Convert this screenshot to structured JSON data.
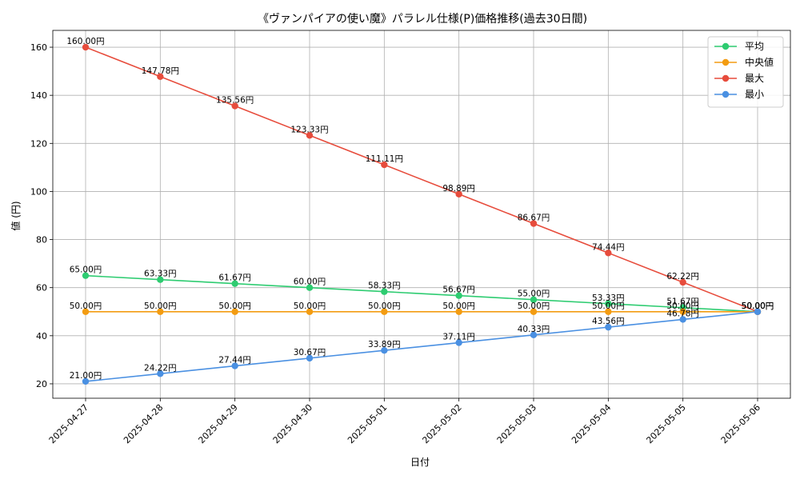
{
  "chart_data": {
    "type": "line",
    "title": "《ヴァンパイアの使い魔》パラレル仕様(P)価格推移(過去30日間)",
    "xlabel": "日付",
    "ylabel": "値 (円)",
    "x": [
      "2025-04-27",
      "2025-04-28",
      "2025-04-29",
      "2025-04-30",
      "2025-05-01",
      "2025-05-02",
      "2025-05-03",
      "2025-05-04",
      "2025-05-05",
      "2025-05-06"
    ],
    "ylim": [
      14,
      167
    ],
    "yticks": [
      20,
      40,
      60,
      80,
      100,
      120,
      140,
      160
    ],
    "grid": true,
    "legend_position": "top-right",
    "value_suffix": "円",
    "series": [
      {
        "name": "平均",
        "color": "#2ecc71",
        "values": [
          65.0,
          63.33,
          61.67,
          60.0,
          58.33,
          56.67,
          55.0,
          53.33,
          51.67,
          50.0
        ]
      },
      {
        "name": "中央値",
        "color": "#f39c12",
        "values": [
          50.0,
          50.0,
          50.0,
          50.0,
          50.0,
          50.0,
          50.0,
          50.0,
          50.0,
          50.0
        ]
      },
      {
        "name": "最大",
        "color": "#e74c3c",
        "values": [
          160.0,
          147.78,
          135.56,
          123.33,
          111.11,
          98.89,
          86.67,
          74.44,
          62.22,
          50.0
        ]
      },
      {
        "name": "最小",
        "color": "#4a90e2",
        "values": [
          21.0,
          24.22,
          27.44,
          30.67,
          33.89,
          37.11,
          40.33,
          43.56,
          46.78,
          50.0
        ]
      }
    ]
  }
}
